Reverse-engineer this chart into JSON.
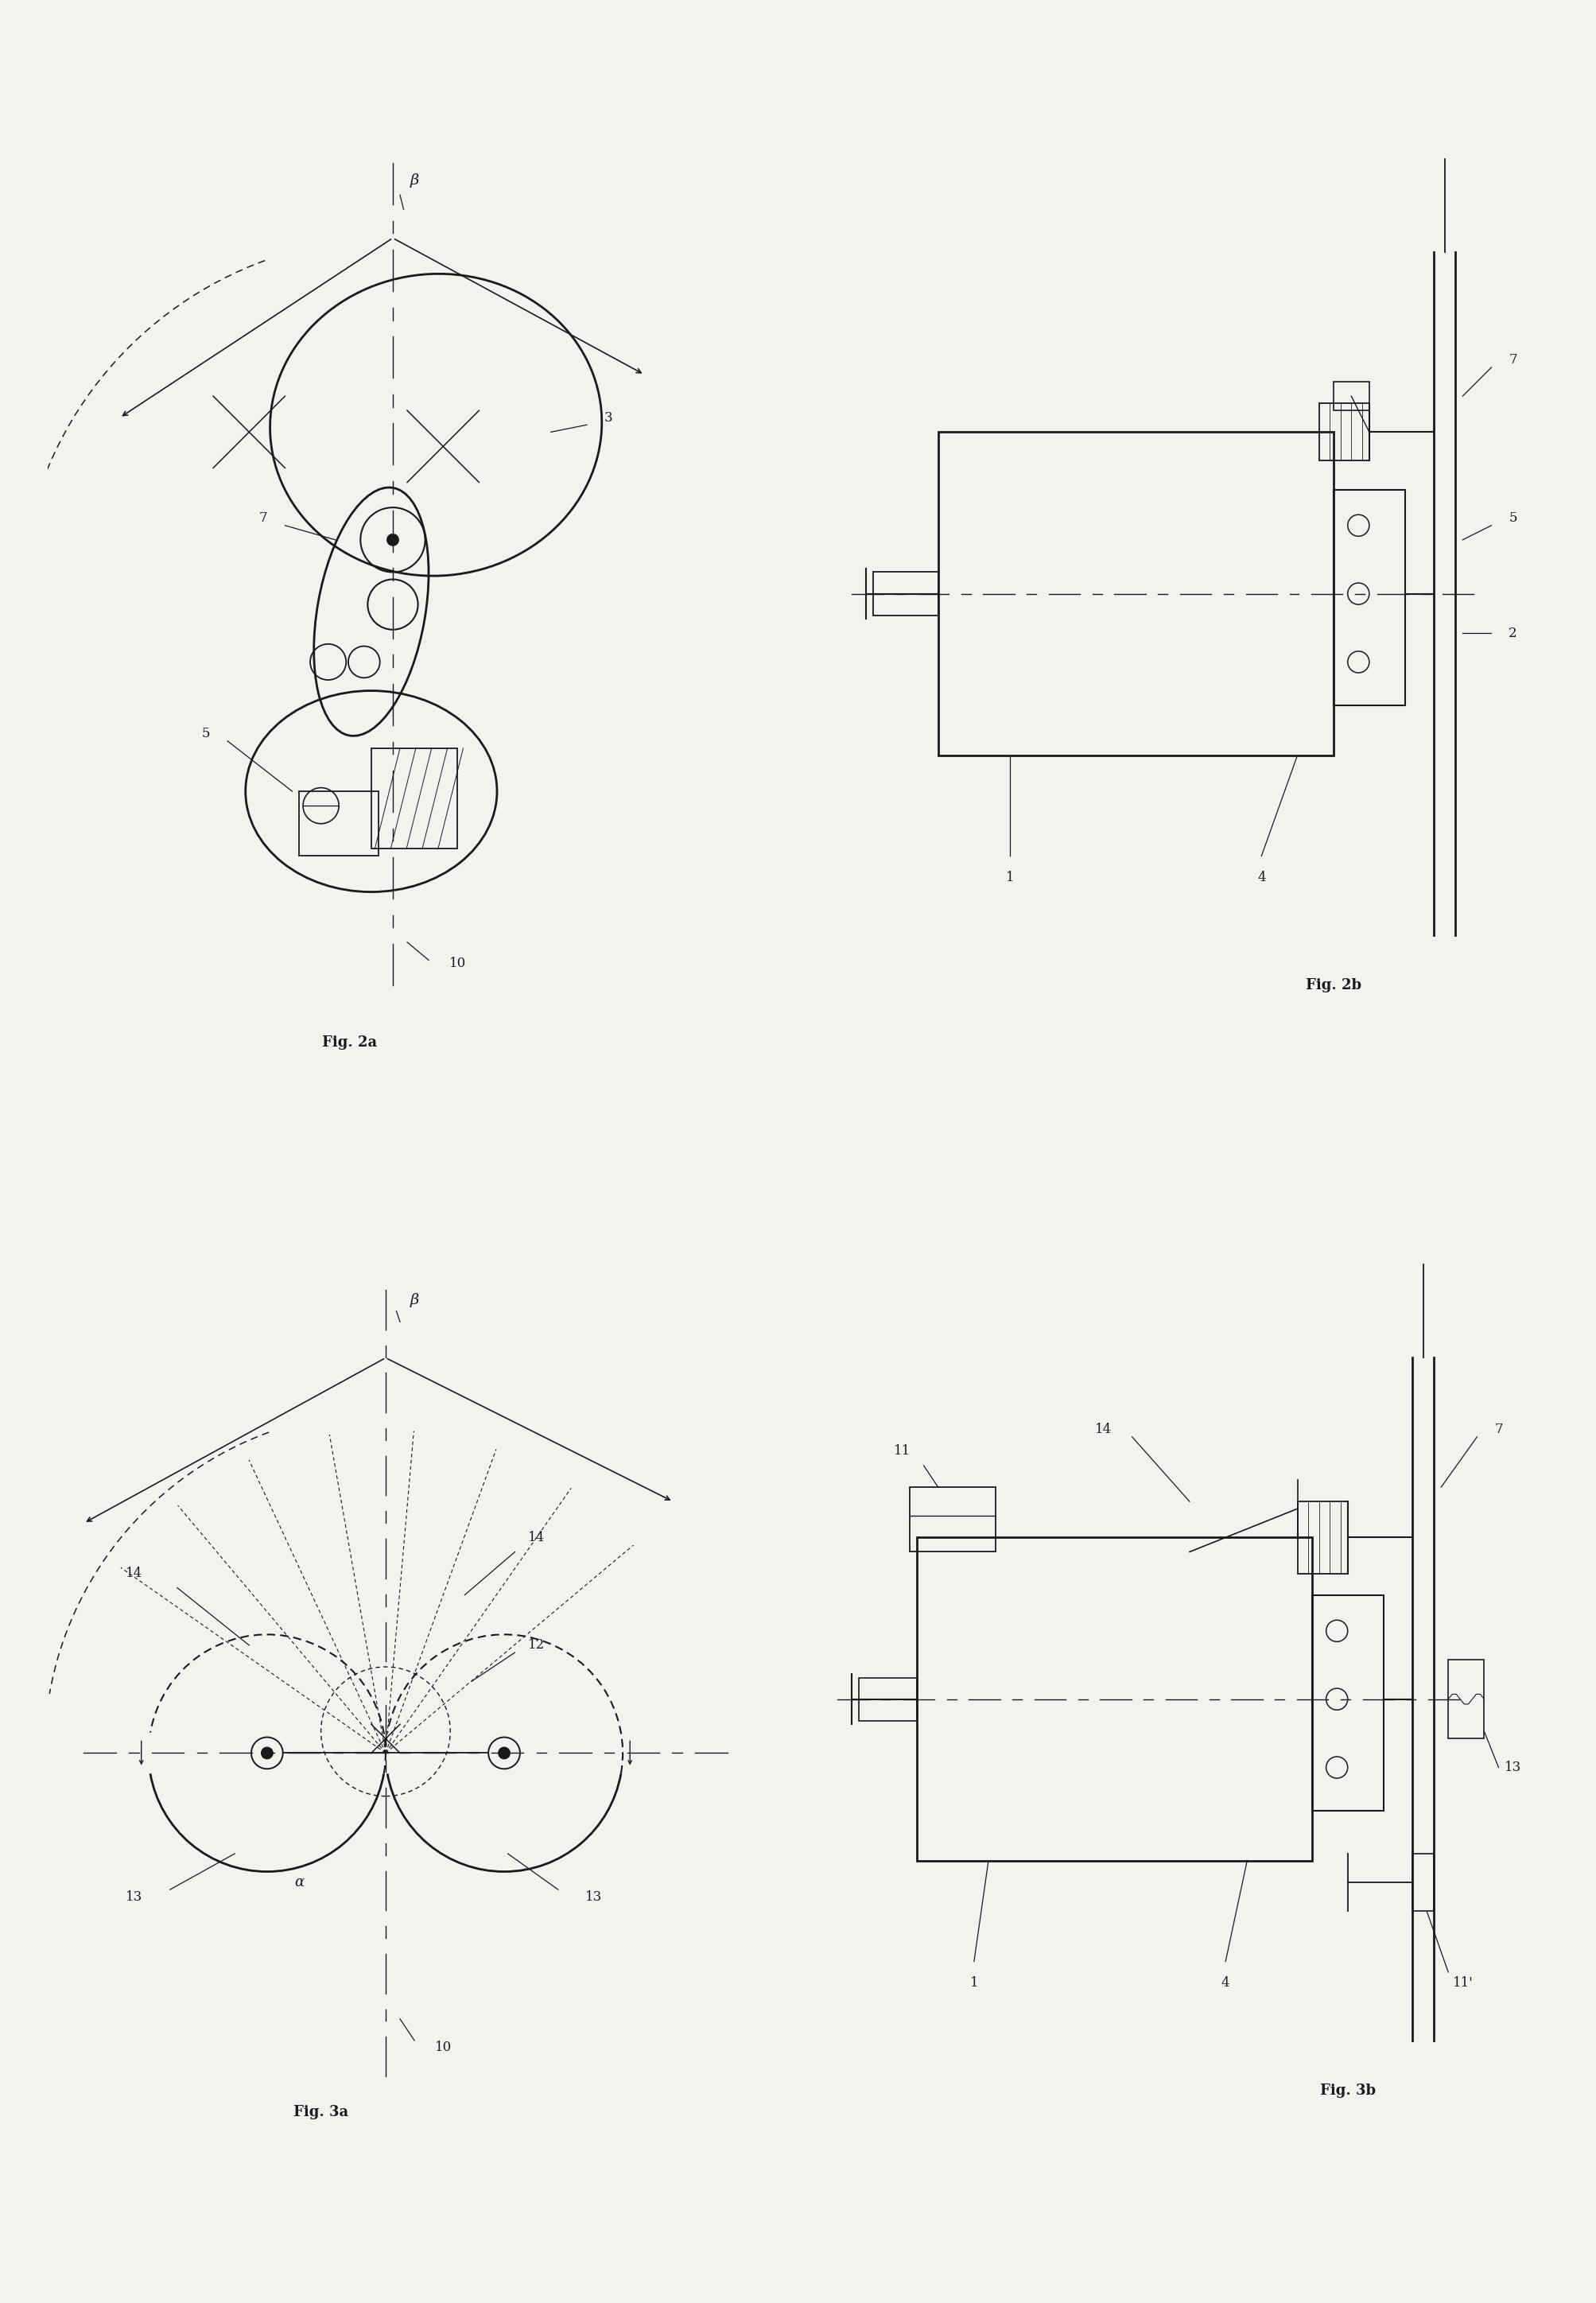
{
  "bg_color": "#f2f2ee",
  "line_color": "#1a1a1a",
  "fig_labels": [
    "Fig. 2a",
    "Fig. 2b",
    "Fig. 3a",
    "Fig. 3b"
  ]
}
